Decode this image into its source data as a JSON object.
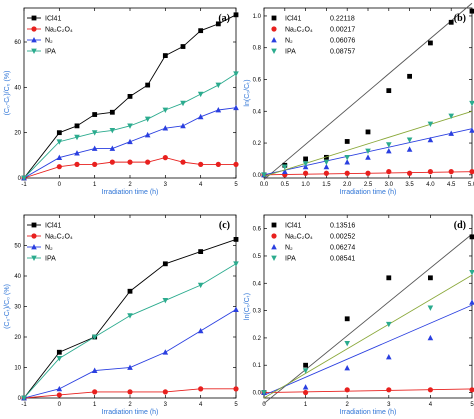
{
  "chart_data": [
    {
      "panel_label": "(a)",
      "type": "line",
      "xlabel": "Irradiation time (h)",
      "ylabel": "(C₀-Cₜ)/C₀ (%)",
      "xlim": [
        -1,
        5
      ],
      "ylim": [
        0,
        75
      ],
      "xticks": [
        -1,
        0,
        1,
        2,
        3,
        4,
        5
      ],
      "yticks": [
        0,
        20,
        40,
        60
      ],
      "legend_position": "top-left",
      "series": [
        {
          "name": "ICl41",
          "color": "#000000",
          "marker": "square",
          "x": [
            -1,
            0,
            0.5,
            1,
            1.5,
            2,
            2.5,
            3,
            3.5,
            4,
            4.5,
            5
          ],
          "y": [
            0,
            20,
            23,
            28,
            29,
            36,
            41,
            54,
            58,
            65,
            68,
            72
          ]
        },
        {
          "name": "Na₂C₂O₄",
          "color": "#e8201e",
          "marker": "circle",
          "x": [
            -1,
            0,
            0.5,
            1,
            1.5,
            2,
            2.5,
            3,
            3.5,
            4,
            4.5,
            5
          ],
          "y": [
            0,
            5,
            6,
            6,
            7,
            7,
            7,
            9,
            7,
            6,
            6,
            6
          ]
        },
        {
          "name": "N₂",
          "color": "#2a3fe0",
          "marker": "triangle-up",
          "x": [
            -1,
            0,
            0.5,
            1,
            1.5,
            2,
            2.5,
            3,
            3.5,
            4,
            4.5,
            5
          ],
          "y": [
            0,
            9,
            11,
            13,
            13,
            16,
            19,
            22,
            23,
            27,
            30,
            31
          ]
        },
        {
          "name": "IPA",
          "color": "#2bab8e",
          "marker": "triangle-down",
          "x": [
            -1,
            0,
            0.5,
            1,
            1.5,
            2,
            2.5,
            3,
            3.5,
            4,
            4.5,
            5
          ],
          "y": [
            0,
            16,
            18,
            20,
            21,
            23,
            26,
            30,
            33,
            37,
            41,
            46
          ]
        }
      ]
    },
    {
      "panel_label": "(b)",
      "type": "scatter",
      "xlabel": "Irradiation time (h)",
      "ylabel": "ln(C₀/Cₜ)",
      "xlim": [
        0,
        5
      ],
      "ylim": [
        -0.02,
        1.05
      ],
      "xticks": [
        0,
        0.5,
        1,
        1.5,
        2,
        2.5,
        3,
        3.5,
        4,
        4.5,
        5
      ],
      "xtick_labels": [
        "0.0",
        "0.5",
        "1.0",
        "1.5",
        "2.0",
        "2.5",
        "3.0",
        "3.5",
        "4.0",
        "4.5",
        "5.0"
      ],
      "yticks": [
        0,
        0.2,
        0.4,
        0.6,
        0.8,
        1.0
      ],
      "ytick_labels": [
        "0.0",
        "0.2",
        "0.4",
        "0.6",
        "0.8",
        "1.0"
      ],
      "legend_position": "top-left",
      "series": [
        {
          "name": "ICl41",
          "rate": "0.22118",
          "color": "#000000",
          "marker": "square",
          "x": [
            0,
            0.5,
            1,
            1.5,
            2,
            2.5,
            3,
            3.5,
            4,
            4.5,
            5
          ],
          "y": [
            0,
            0.06,
            0.1,
            0.11,
            0.21,
            0.27,
            0.53,
            0.62,
            0.83,
            0.96,
            1.03
          ],
          "fit": [
            [
              0,
              -0.03
            ],
            [
              5,
              1.08
            ]
          ]
        },
        {
          "name": "Na₂C₂O₄",
          "rate": "0.00217",
          "color": "#e8201e",
          "marker": "circle",
          "x": [
            0,
            0.5,
            1,
            1.5,
            2,
            2.5,
            3,
            3.5,
            4,
            4.5,
            5
          ],
          "y": [
            0,
            0,
            0.01,
            0.01,
            0.01,
            0.01,
            0.02,
            0.01,
            0.02,
            0.02,
            0.02
          ],
          "fit": [
            [
              0,
              0.0
            ],
            [
              5,
              0.02
            ]
          ]
        },
        {
          "name": "N₂",
          "rate": "0.06076",
          "color": "#2a3fe0",
          "marker": "triangle-up",
          "x": [
            0,
            0.5,
            1,
            1.5,
            2,
            2.5,
            3,
            3.5,
            4,
            4.5,
            5
          ],
          "y": [
            0,
            0.02,
            0.05,
            0.05,
            0.08,
            0.11,
            0.15,
            0.16,
            0.22,
            0.26,
            0.28
          ],
          "fit": [
            [
              0,
              0.0
            ],
            [
              5,
              0.29
            ]
          ]
        },
        {
          "name": "IPA",
          "rate": "0.08757",
          "color": "#2bab8e",
          "marker": "triangle-down",
          "x": [
            0,
            0.5,
            1,
            1.5,
            2,
            2.5,
            3,
            3.5,
            4,
            4.5,
            5
          ],
          "y": [
            0,
            0.05,
            0.07,
            0.08,
            0.11,
            0.15,
            0.19,
            0.22,
            0.32,
            0.37,
            0.45
          ],
          "fit": [
            [
              0,
              -0.01
            ],
            [
              5,
              0.4
            ]
          ]
        }
      ]
    },
    {
      "panel_label": "(c)",
      "type": "line",
      "xlabel": "Irradiation time (h)",
      "ylabel": "(C₀-Cₜ)/C₀ (%)",
      "xlim": [
        -1,
        5
      ],
      "ylim": [
        0,
        60
      ],
      "xticks": [
        -1,
        0,
        1,
        2,
        3,
        4,
        5
      ],
      "yticks": [
        0,
        10,
        20,
        30,
        40,
        50
      ],
      "legend_position": "top-left",
      "series": [
        {
          "name": "ICl41",
          "color": "#000000",
          "marker": "square",
          "x": [
            -1,
            0,
            1,
            2,
            3,
            4,
            5
          ],
          "y": [
            0,
            15,
            20,
            35,
            44,
            48,
            52
          ]
        },
        {
          "name": "Na₂C₂O₄",
          "color": "#e8201e",
          "marker": "circle",
          "x": [
            -1,
            0,
            1,
            2,
            3,
            4,
            5
          ],
          "y": [
            0,
            1,
            2,
            2,
            2,
            3,
            3
          ]
        },
        {
          "name": "N₂",
          "color": "#2a3fe0",
          "marker": "triangle-up",
          "x": [
            -1,
            0,
            1,
            2,
            3,
            4,
            5
          ],
          "y": [
            0,
            3,
            9,
            10,
            15,
            22,
            29
          ]
        },
        {
          "name": "IPA",
          "color": "#2bab8e",
          "marker": "triangle-down",
          "x": [
            -1,
            0,
            1,
            2,
            3,
            4,
            5
          ],
          "y": [
            0,
            13,
            20,
            27,
            32,
            37,
            44
          ]
        }
      ]
    },
    {
      "panel_label": "(d)",
      "type": "scatter",
      "xlabel": "Irradiation time (h)",
      "ylabel": "ln(C₀/Cₜ)",
      "xlim": [
        0,
        5
      ],
      "ylim": [
        -0.02,
        0.65
      ],
      "xticks": [
        0,
        1,
        2,
        3,
        4,
        5
      ],
      "yticks": [
        0,
        0.1,
        0.2,
        0.3,
        0.4,
        0.5,
        0.6
      ],
      "ytick_labels": [
        "0.0",
        "0.1",
        "0.2",
        "0.3",
        "0.4",
        "0.5",
        "0.6"
      ],
      "legend_position": "top-left",
      "series": [
        {
          "name": "ICl41",
          "rate": "0.13516",
          "color": "#000000",
          "marker": "square",
          "x": [
            0,
            1,
            2,
            3,
            4,
            5
          ],
          "y": [
            0,
            0.1,
            0.27,
            0.42,
            0.42,
            0.57
          ],
          "fit": [
            [
              0,
              -0.04
            ],
            [
              5,
              0.58
            ]
          ]
        },
        {
          "name": "Na₂C₂O₄",
          "rate": "0.00252",
          "color": "#e8201e",
          "marker": "circle",
          "x": [
            0,
            1,
            2,
            3,
            4,
            5
          ],
          "y": [
            0,
            0,
            0.01,
            0.01,
            0.01,
            0.01
          ],
          "fit": [
            [
              0,
              0.0
            ],
            [
              5,
              0.013
            ]
          ]
        },
        {
          "name": "N₂",
          "rate": "0.06274",
          "color": "#2a3fe0",
          "marker": "triangle-up",
          "x": [
            0,
            1,
            2,
            3,
            4,
            5
          ],
          "y": [
            0,
            0.02,
            0.09,
            0.13,
            0.2,
            0.33
          ],
          "fit": [
            [
              0,
              -0.01
            ],
            [
              5,
              0.32
            ]
          ]
        },
        {
          "name": "IPA",
          "rate": "0.08541",
          "color": "#2bab8e",
          "marker": "triangle-down",
          "x": [
            0,
            1,
            2,
            3,
            4,
            5
          ],
          "y": [
            0,
            0.08,
            0.18,
            0.25,
            0.31,
            0.44
          ],
          "fit": [
            [
              0,
              -0.02
            ],
            [
              5,
              0.43
            ]
          ]
        }
      ]
    }
  ]
}
